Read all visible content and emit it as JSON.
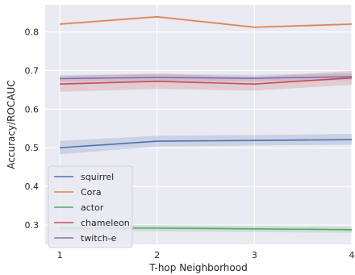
{
  "chart_data": {
    "type": "line",
    "xlabel": "T-hop Neighborhood",
    "ylabel": "Accuracy/ROCAUC",
    "x": [
      1,
      2,
      3,
      4
    ],
    "xticks": [
      "1",
      "2",
      "3",
      "4"
    ],
    "xlim": [
      0.85,
      4.0
    ],
    "ylim": [
      0.25,
      0.87
    ],
    "yticks": [
      "0.3",
      "0.4",
      "0.5",
      "0.6",
      "0.7",
      "0.8"
    ],
    "ytick_values": [
      0.3,
      0.4,
      0.5,
      0.6,
      0.7,
      0.8
    ],
    "grid": true,
    "legend_position": "lower-left",
    "background": "#eaeaf2",
    "series": [
      {
        "name": "squirrel",
        "color": "#4c72b0",
        "values": [
          0.5,
          0.517,
          0.519,
          0.521
        ],
        "lower": [
          0.483,
          0.503,
          0.506,
          0.508
        ],
        "upper": [
          0.518,
          0.531,
          0.533,
          0.536
        ]
      },
      {
        "name": "Cora",
        "color": "#dd8452",
        "values": [
          0.82,
          0.839,
          0.812,
          0.82
        ],
        "lower": [
          0.817,
          0.836,
          0.81,
          0.817
        ],
        "upper": [
          0.823,
          0.842,
          0.815,
          0.823
        ]
      },
      {
        "name": "actor",
        "color": "#55a868",
        "values": [
          0.292,
          0.292,
          0.29,
          0.288
        ],
        "lower": [
          0.284,
          0.284,
          0.282,
          0.28
        ],
        "upper": [
          0.3,
          0.3,
          0.298,
          0.296
        ]
      },
      {
        "name": "chameleon",
        "color": "#c44e52",
        "values": [
          0.665,
          0.672,
          0.665,
          0.681
        ],
        "lower": [
          0.645,
          0.652,
          0.648,
          0.663
        ],
        "upper": [
          0.685,
          0.692,
          0.683,
          0.699
        ]
      },
      {
        "name": "twitch-e",
        "color": "#8172b3",
        "values": [
          0.679,
          0.682,
          0.68,
          0.684
        ],
        "lower": [
          0.67,
          0.673,
          0.671,
          0.675
        ],
        "upper": [
          0.688,
          0.691,
          0.689,
          0.693
        ]
      }
    ]
  }
}
